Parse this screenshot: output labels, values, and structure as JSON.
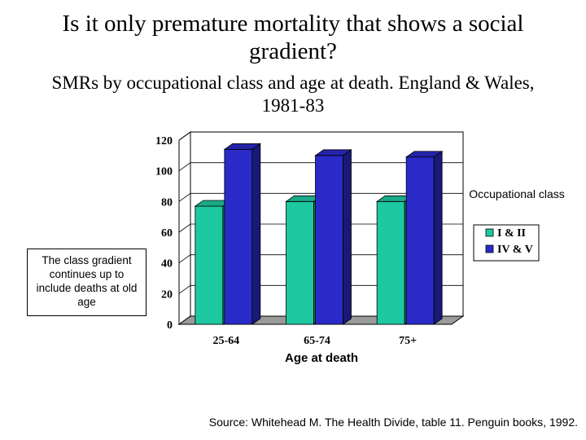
{
  "slide": {
    "title": "Is it only premature mortality that shows a social gradient?",
    "subtitle": "SMRs by occupational class and age at death. England & Wales, 1981-83",
    "note": "The class gradient continues up to include deaths at old age",
    "source": "Source:  Whitehead M. The Health Divide, table 11.  Penguin books, 1992."
  },
  "chart_data": {
    "type": "bar",
    "style": "3d-clustered",
    "categories": [
      "25-64",
      "65-74",
      "75+"
    ],
    "series": [
      {
        "name": "I & II",
        "color": "#1ec8a0",
        "values": [
          77,
          80,
          80
        ]
      },
      {
        "name": "IV & V",
        "color": "#2a2ac8",
        "values": [
          114,
          110,
          109
        ]
      }
    ],
    "xlabel": "Age at death",
    "ylabel": "",
    "ylim": [
      0,
      120
    ],
    "yticks": [
      "0",
      "20",
      "40",
      "60",
      "80",
      "100",
      "120"
    ],
    "grid": true,
    "legend": {
      "title": "Occupational class",
      "placement": "right"
    }
  }
}
